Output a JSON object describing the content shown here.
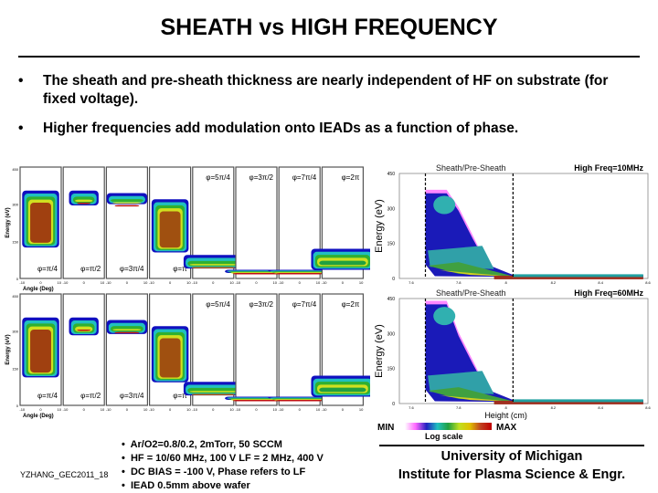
{
  "title": "SHEATH vs HIGH FREQUENCY",
  "bullets": [
    "The sheath and pre-sheath thickness are nearly independent of HF on substrate (for fixed voltage).",
    "Higher frequencies add modulation onto IEADs as a function of phase."
  ],
  "iead": {
    "ylabel": "Energy (eV)",
    "xlabel": "Angle (Deg)",
    "yticks": [
      "0",
      "150",
      "300",
      "450"
    ],
    "xticks": [
      "-10",
      "0",
      "10"
    ],
    "phases": [
      "φ=π/4",
      "φ=π/2",
      "φ=3π/4",
      "φ=π",
      "φ=5π/4",
      "φ=3π/2",
      "φ=7π/4",
      "φ=2π"
    ]
  },
  "sheath": {
    "label": "Sheath/Pre-Sheath",
    "panels": [
      {
        "freq": "High Freq=10MHz"
      },
      {
        "freq": "High Freq=60MHz"
      }
    ],
    "ylabel": "Energy (eV)",
    "xlabel": "Height (cm)",
    "yticks": [
      "0",
      "150",
      "300",
      "450"
    ],
    "xticks": [
      "7.6",
      "7.8",
      "8",
      "8.2",
      "8.4",
      "8.6"
    ]
  },
  "colorbar": {
    "min": "MIN",
    "max": "MAX",
    "label": "Log scale",
    "colors": [
      "#ffffff",
      "#ff66ff",
      "#2020c0",
      "#20c0c0",
      "#20a040",
      "#c0e020",
      "#e0c000",
      "#c04020",
      "#c00000"
    ]
  },
  "conditions": [
    "Ar/O2=0.8/0.2, 2mTorr, 50 SCCM",
    "HF = 10/60 MHz, 100 V LF = 2 MHz, 400 V",
    "DC BIAS = -100 V, Phase refers to LF",
    "IEAD 0.5mm above wafer"
  ],
  "affiliation": [
    "University of Michigan",
    "Institute for Plasma Science & Engr."
  ],
  "footer": "YZHANG_GEC2011_18"
}
